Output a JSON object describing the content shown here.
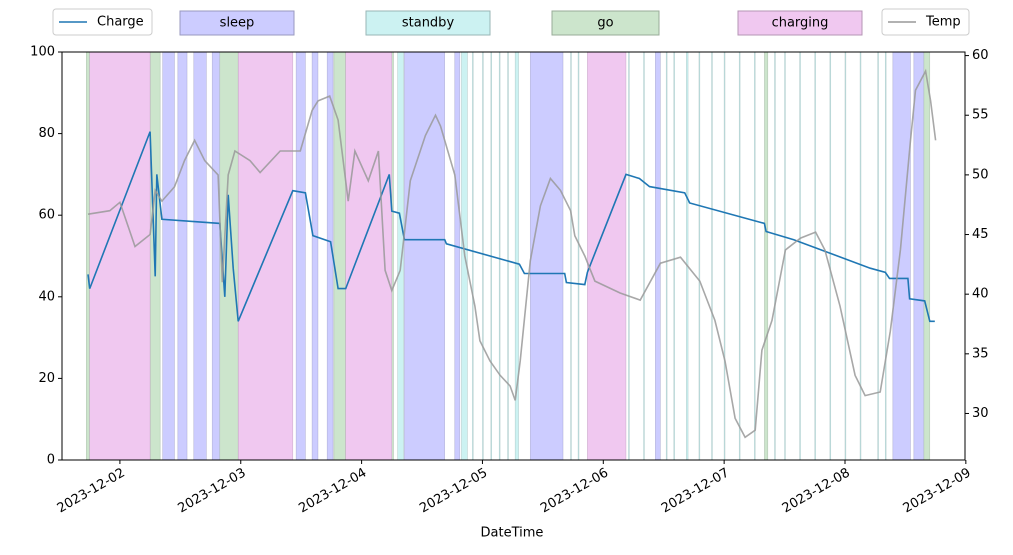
{
  "chart_data": {
    "type": "line",
    "x_label": "DateTime",
    "xlim": [
      "2023-12-01 12:30",
      "2023-12-08 23:50"
    ],
    "xticks": [
      "2023-12-02",
      "2023-12-03",
      "2023-12-04",
      "2023-12-05",
      "2023-12-06",
      "2023-12-07",
      "2023-12-08",
      "2023-12-09"
    ],
    "ylim": [
      0,
      100
    ],
    "yticks": [
      0,
      20,
      40,
      60,
      80,
      100
    ],
    "y2lim": [
      26.1,
      60.3
    ],
    "y2ticks": [
      30,
      35,
      40,
      45,
      50,
      55,
      60
    ],
    "series": [
      {
        "name": "Charge",
        "color": "#1f77b4",
        "axis": "y",
        "x": [
          "2023-12-01 17:40",
          "2023-12-01 18:00",
          "2023-12-02 06:00",
          "2023-12-02 07:00",
          "2023-12-02 07:20",
          "2023-12-02 08:20",
          "2023-12-02 19:50",
          "2023-12-02 20:50",
          "2023-12-02 21:30",
          "2023-12-02 22:30",
          "2023-12-02 23:30",
          "2023-12-03 10:20",
          "2023-12-03 12:50",
          "2023-12-03 14:20",
          "2023-12-03 17:50",
          "2023-12-03 19:20",
          "2023-12-03 20:50",
          "2023-12-04 05:30",
          "2023-12-04 06:00",
          "2023-12-04 07:30",
          "2023-12-04 08:30",
          "2023-12-04 16:30",
          "2023-12-04 16:50",
          "2023-12-05 07:20",
          "2023-12-05 08:20",
          "2023-12-05 16:20",
          "2023-12-05 16:40",
          "2023-12-05 20:20",
          "2023-12-05 20:50",
          "2023-12-06 04:30",
          "2023-12-06 07:10",
          "2023-12-06 09:10",
          "2023-12-06 16:10",
          "2023-12-06 17:10",
          "2023-12-07 08:00",
          "2023-12-07 08:20",
          "2023-12-07 13:50",
          "2023-12-08 05:00",
          "2023-12-08 08:00",
          "2023-12-08 08:50",
          "2023-12-08 12:30",
          "2023-12-08 12:50",
          "2023-12-08 15:50",
          "2023-12-08 16:50",
          "2023-12-08 17:50"
        ],
        "values": [
          45.5,
          42,
          80.5,
          45,
          70,
          59,
          58,
          40,
          65,
          47,
          34,
          66,
          65.5,
          55,
          53.5,
          42,
          42,
          70,
          61,
          60.5,
          54,
          54,
          53,
          48,
          45.7,
          45.7,
          43.5,
          43,
          46,
          70,
          69,
          67,
          65.5,
          63,
          58,
          56,
          54,
          47,
          46,
          44.5,
          44.5,
          39.5,
          39,
          34,
          34
        ]
      },
      {
        "name": "Temp",
        "color": "#999999",
        "axis": "y2",
        "x": [
          "2023-12-01 17:40",
          "2023-12-01 22:00",
          "2023-12-02 00:00",
          "2023-12-02 03:00",
          "2023-12-02 06:00",
          "2023-12-02 07:00",
          "2023-12-02 08:20",
          "2023-12-02 10:50",
          "2023-12-02 12:50",
          "2023-12-02 14:50",
          "2023-12-02 16:50",
          "2023-12-02 19:30",
          "2023-12-02 20:20",
          "2023-12-02 21:30",
          "2023-12-02 22:50",
          "2023-12-03 01:50",
          "2023-12-03 03:50",
          "2023-12-03 07:50",
          "2023-12-03 11:50",
          "2023-12-03 14:10",
          "2023-12-03 15:20",
          "2023-12-03 17:40",
          "2023-12-03 19:20",
          "2023-12-03 21:20",
          "2023-12-03 22:40",
          "2023-12-04 01:20",
          "2023-12-04 03:20",
          "2023-12-04 04:40",
          "2023-12-04 06:00",
          "2023-12-04 07:40",
          "2023-12-04 09:40",
          "2023-12-04 12:40",
          "2023-12-04 14:40",
          "2023-12-04 15:40",
          "2023-12-04 18:30",
          "2023-12-04 20:30",
          "2023-12-04 22:30",
          "2023-12-04 23:30",
          "2023-12-05 01:30",
          "2023-12-05 03:30",
          "2023-12-05 05:30",
          "2023-12-05 06:30",
          "2023-12-05 07:30",
          "2023-12-05 09:30",
          "2023-12-05 11:30",
          "2023-12-05 13:30",
          "2023-12-05 15:30",
          "2023-12-05 17:30",
          "2023-12-05 18:20",
          "2023-12-05 20:20",
          "2023-12-05 22:20",
          "2023-12-06 03:20",
          "2023-12-06 07:20",
          "2023-12-06 11:20",
          "2023-12-06 15:20",
          "2023-12-06 19:10",
          "2023-12-06 22:10",
          "2023-12-07 00:10",
          "2023-12-07 02:10",
          "2023-12-07 04:10",
          "2023-12-07 06:10",
          "2023-12-07 07:30",
          "2023-12-07 09:30",
          "2023-12-07 12:10",
          "2023-12-07 15:10",
          "2023-12-07 18:10",
          "2023-12-07 20:00",
          "2023-12-07 23:00",
          "2023-12-08 02:00",
          "2023-12-08 04:00",
          "2023-12-08 07:00",
          "2023-12-08 09:00",
          "2023-12-08 11:00",
          "2023-12-08 13:00",
          "2023-12-08 14:00",
          "2023-12-08 16:00",
          "2023-12-08 17:00",
          "2023-12-08 18:00"
        ],
        "values": [
          46.7,
          47,
          47.7,
          44,
          45,
          48.7,
          47.8,
          49,
          51.2,
          52.9,
          51.2,
          50,
          41,
          50,
          52,
          51.2,
          50.2,
          52,
          52,
          55.4,
          56.2,
          56.6,
          54.6,
          47.8,
          52,
          49.5,
          52,
          42,
          40.3,
          42,
          49.5,
          53.3,
          55,
          54.1,
          50,
          43.2,
          39,
          36.1,
          34.4,
          33.2,
          32.3,
          31.1,
          34.4,
          42.8,
          47.4,
          49.7,
          48.7,
          47,
          44.9,
          43.2,
          41.1,
          40.1,
          39.5,
          42.6,
          43.1,
          41.1,
          37.8,
          34.4,
          29.6,
          28,
          28.6,
          35.3,
          37.8,
          43.7,
          44.7,
          45.2,
          43.7,
          39,
          33.2,
          31.5,
          31.8,
          36.9,
          43.7,
          52.9,
          57.1,
          58.7,
          56.2,
          52.9
        ]
      }
    ],
    "modes": [
      {
        "name": "sleep",
        "color": "#ccccff",
        "spans": [
          [
            "2023-12-02 08:30",
            "2023-12-02 10:50"
          ],
          [
            "2023-12-02 11:30",
            "2023-12-02 13:20"
          ],
          [
            "2023-12-02 14:40",
            "2023-12-02 17:10"
          ],
          [
            "2023-12-02 18:20",
            "2023-12-02 20:20"
          ],
          [
            "2023-12-03 11:00",
            "2023-12-03 12:50"
          ],
          [
            "2023-12-03 14:10",
            "2023-12-03 15:20"
          ],
          [
            "2023-12-03 17:10",
            "2023-12-03 18:20"
          ],
          [
            "2023-12-04 08:30",
            "2023-12-04 16:30"
          ],
          [
            "2023-12-04 18:30",
            "2023-12-04 19:30"
          ],
          [
            "2023-12-05 09:30",
            "2023-12-05 16:00"
          ],
          [
            "2023-12-06 10:20",
            "2023-12-06 11:20"
          ],
          [
            "2023-12-08 09:30",
            "2023-12-08 13:00"
          ],
          [
            "2023-12-08 13:40",
            "2023-12-08 16:00"
          ]
        ]
      },
      {
        "name": "standby",
        "color": "#ccf2f2",
        "spans": [
          [
            "2023-12-04 07:10",
            "2023-12-04 08:20"
          ],
          [
            "2023-12-04 19:50",
            "2023-12-04 21:00"
          ],
          [
            "2023-12-04 22:00",
            "2023-12-04 22:10"
          ],
          [
            "2023-12-05 00:00",
            "2023-12-05 00:10"
          ],
          [
            "2023-12-05 01:40",
            "2023-12-05 01:50"
          ],
          [
            "2023-12-05 03:20",
            "2023-12-05 03:30"
          ],
          [
            "2023-12-05 05:00",
            "2023-12-05 05:10"
          ],
          [
            "2023-12-05 06:30",
            "2023-12-05 07:10"
          ],
          [
            "2023-12-05 17:30",
            "2023-12-05 17:40"
          ],
          [
            "2023-12-05 19:00",
            "2023-12-05 19:10"
          ],
          [
            "2023-12-06 05:00",
            "2023-12-06 05:10"
          ],
          [
            "2023-12-06 08:00",
            "2023-12-06 08:10"
          ],
          [
            "2023-12-06 12:30",
            "2023-12-06 12:40"
          ],
          [
            "2023-12-06 14:00",
            "2023-12-06 14:10"
          ],
          [
            "2023-12-06 16:30",
            "2023-12-06 16:50"
          ],
          [
            "2023-12-06 19:00",
            "2023-12-06 19:10"
          ],
          [
            "2023-12-06 21:30",
            "2023-12-06 21:40"
          ],
          [
            "2023-12-07 00:00",
            "2023-12-07 00:10"
          ],
          [
            "2023-12-07 03:00",
            "2023-12-07 03:10"
          ],
          [
            "2023-12-07 06:00",
            "2023-12-07 06:10"
          ],
          [
            "2023-12-07 10:00",
            "2023-12-07 10:10"
          ],
          [
            "2023-12-07 12:00",
            "2023-12-07 12:10"
          ],
          [
            "2023-12-07 15:00",
            "2023-12-07 15:10"
          ],
          [
            "2023-12-07 18:00",
            "2023-12-07 18:10"
          ],
          [
            "2023-12-07 21:00",
            "2023-12-07 21:10"
          ],
          [
            "2023-12-08 00:00",
            "2023-12-08 00:10"
          ],
          [
            "2023-12-08 03:00",
            "2023-12-08 03:10"
          ],
          [
            "2023-12-08 06:30",
            "2023-12-08 06:40"
          ],
          [
            "2023-12-08 08:00",
            "2023-12-08 08:10"
          ]
        ]
      },
      {
        "name": "go",
        "color": "#cce5cc",
        "spans": [
          [
            "2023-12-01 17:20",
            "2023-12-01 18:00"
          ],
          [
            "2023-12-02 06:00",
            "2023-12-02 08:00"
          ],
          [
            "2023-12-02 19:50",
            "2023-12-02 23:30"
          ],
          [
            "2023-12-03 18:30",
            "2023-12-03 20:50"
          ],
          [
            "2023-12-04 05:30",
            "2023-12-04 06:20"
          ],
          [
            "2023-12-07 08:00",
            "2023-12-07 08:40"
          ],
          [
            "2023-12-08 15:40",
            "2023-12-08 16:50"
          ]
        ]
      },
      {
        "name": "charging",
        "color": "#f0c8f0",
        "spans": [
          [
            "2023-12-01 18:00",
            "2023-12-02 06:00"
          ],
          [
            "2023-12-02 23:30",
            "2023-12-03 10:20"
          ],
          [
            "2023-12-03 20:50",
            "2023-12-04 06:00"
          ],
          [
            "2023-12-05 20:50",
            "2023-12-06 04:30"
          ]
        ]
      }
    ]
  }
}
